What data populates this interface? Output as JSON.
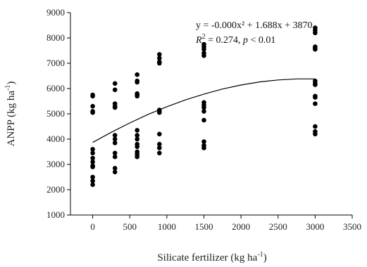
{
  "chart_data": {
    "type": "scatter",
    "xlabel": "Silicate fertilizer (kg ha",
    "xlabel_sup": "-1",
    "xlabel_close": ")",
    "ylabel": "ANPP (kg ha",
    "ylabel_sup": "-1",
    "ylabel_close": ")",
    "xlim": [
      -300,
      3500
    ],
    "ylim": [
      1000,
      9000
    ],
    "x_ticks": [
      0,
      500,
      1000,
      1500,
      2000,
      2500,
      3000,
      3500
    ],
    "y_ticks": [
      1000,
      2000,
      3000,
      4000,
      5000,
      6000,
      7000,
      8000,
      9000
    ],
    "x_tick_labels": [
      "0",
      "500",
      "1000",
      "1500",
      "2000",
      "2500",
      "3000",
      "3500"
    ],
    "y_tick_labels": [
      "1000",
      "2000",
      "3000",
      "4000",
      "5000",
      "6000",
      "7000",
      "8000",
      "9000"
    ],
    "equation_line1": "y = -0.000x² + 1.688x + 3870",
    "equation_line2_r": "R",
    "equation_line2_r_sup": "2",
    "equation_line2_mid": " = 0.274, ",
    "equation_line2_p": "p",
    "equation_line2_end": " < 0.01",
    "marker_color": "#000000",
    "curve_color": "#000000",
    "points": [
      {
        "x": 0,
        "y": 5750
      },
      {
        "x": 0,
        "y": 5700
      },
      {
        "x": 0,
        "y": 5300
      },
      {
        "x": 0,
        "y": 5100
      },
      {
        "x": 0,
        "y": 5050
      },
      {
        "x": 0,
        "y": 3600
      },
      {
        "x": 0,
        "y": 3450
      },
      {
        "x": 0,
        "y": 3250
      },
      {
        "x": 0,
        "y": 3100
      },
      {
        "x": 0,
        "y": 2950
      },
      {
        "x": 0,
        "y": 2900
      },
      {
        "x": 0,
        "y": 2500
      },
      {
        "x": 0,
        "y": 2350
      },
      {
        "x": 0,
        "y": 2200
      },
      {
        "x": 300,
        "y": 6200
      },
      {
        "x": 300,
        "y": 5950
      },
      {
        "x": 300,
        "y": 5400
      },
      {
        "x": 300,
        "y": 5300
      },
      {
        "x": 300,
        "y": 5250
      },
      {
        "x": 300,
        "y": 4150
      },
      {
        "x": 300,
        "y": 4000
      },
      {
        "x": 300,
        "y": 3850
      },
      {
        "x": 300,
        "y": 3450
      },
      {
        "x": 300,
        "y": 3300
      },
      {
        "x": 300,
        "y": 2850
      },
      {
        "x": 300,
        "y": 2700
      },
      {
        "x": 600,
        "y": 6550
      },
      {
        "x": 600,
        "y": 6300
      },
      {
        "x": 600,
        "y": 6250
      },
      {
        "x": 600,
        "y": 5800
      },
      {
        "x": 600,
        "y": 5750
      },
      {
        "x": 600,
        "y": 5700
      },
      {
        "x": 600,
        "y": 4350
      },
      {
        "x": 600,
        "y": 4150
      },
      {
        "x": 600,
        "y": 4000
      },
      {
        "x": 600,
        "y": 3800
      },
      {
        "x": 600,
        "y": 3700
      },
      {
        "x": 600,
        "y": 3500
      },
      {
        "x": 600,
        "y": 3400
      },
      {
        "x": 600,
        "y": 3300
      },
      {
        "x": 900,
        "y": 7350
      },
      {
        "x": 900,
        "y": 7200
      },
      {
        "x": 900,
        "y": 7050
      },
      {
        "x": 900,
        "y": 7000
      },
      {
        "x": 900,
        "y": 5150
      },
      {
        "x": 900,
        "y": 5100
      },
      {
        "x": 900,
        "y": 5050
      },
      {
        "x": 900,
        "y": 4200
      },
      {
        "x": 900,
        "y": 3800
      },
      {
        "x": 900,
        "y": 3650
      },
      {
        "x": 900,
        "y": 3450
      },
      {
        "x": 1500,
        "y": 7750
      },
      {
        "x": 1500,
        "y": 7650
      },
      {
        "x": 1500,
        "y": 7550
      },
      {
        "x": 1500,
        "y": 7400
      },
      {
        "x": 1500,
        "y": 7300
      },
      {
        "x": 1500,
        "y": 5450
      },
      {
        "x": 1500,
        "y": 5350
      },
      {
        "x": 1500,
        "y": 5250
      },
      {
        "x": 1500,
        "y": 5100
      },
      {
        "x": 1500,
        "y": 4750
      },
      {
        "x": 1500,
        "y": 3900
      },
      {
        "x": 1500,
        "y": 3750
      },
      {
        "x": 1500,
        "y": 3650
      },
      {
        "x": 3000,
        "y": 8400
      },
      {
        "x": 3000,
        "y": 8300
      },
      {
        "x": 3000,
        "y": 8200
      },
      {
        "x": 3000,
        "y": 7650
      },
      {
        "x": 3000,
        "y": 7600
      },
      {
        "x": 3000,
        "y": 7550
      },
      {
        "x": 3000,
        "y": 6300
      },
      {
        "x": 3000,
        "y": 6200
      },
      {
        "x": 3000,
        "y": 6150
      },
      {
        "x": 3000,
        "y": 5700
      },
      {
        "x": 3000,
        "y": 5650
      },
      {
        "x": 3000,
        "y": 5400
      },
      {
        "x": 3000,
        "y": 4500
      },
      {
        "x": 3000,
        "y": 4300
      },
      {
        "x": 3000,
        "y": 4200
      }
    ],
    "fit_curve": {
      "type": "quadratic",
      "x_range": [
        0,
        3000
      ],
      "points": [
        {
          "x": 0,
          "y": 3870
        },
        {
          "x": 250,
          "y": 4270
        },
        {
          "x": 500,
          "y": 4640
        },
        {
          "x": 750,
          "y": 4980
        },
        {
          "x": 1000,
          "y": 5280
        },
        {
          "x": 1250,
          "y": 5550
        },
        {
          "x": 1500,
          "y": 5780
        },
        {
          "x": 1750,
          "y": 5980
        },
        {
          "x": 2000,
          "y": 6140
        },
        {
          "x": 2250,
          "y": 6260
        },
        {
          "x": 2500,
          "y": 6340
        },
        {
          "x": 2750,
          "y": 6380
        },
        {
          "x": 3000,
          "y": 6380
        }
      ]
    }
  }
}
